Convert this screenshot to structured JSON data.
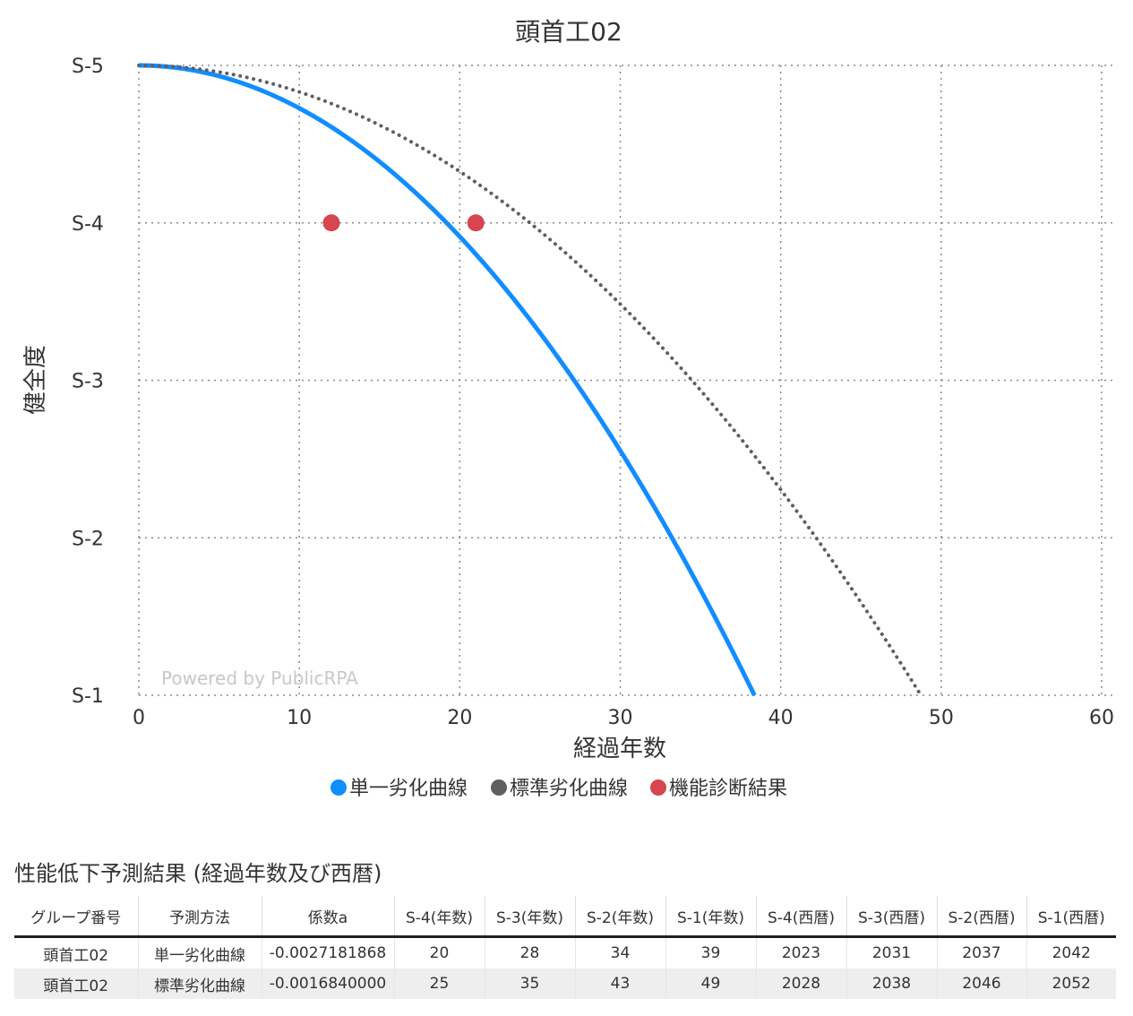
{
  "chart_data": {
    "type": "line",
    "title": "頭首工02",
    "xlabel": "経過年数",
    "ylabel": "健全度",
    "xlim": [
      0,
      60
    ],
    "ylim": [
      1,
      5
    ],
    "xticks": [
      "0",
      "10",
      "20",
      "30",
      "40",
      "50",
      "60"
    ],
    "yticks": [
      "S-5",
      "S-4",
      "S-3",
      "S-2",
      "S-1"
    ],
    "grid": true,
    "legend_position": "bottom",
    "series": [
      {
        "name": "単一劣化曲線",
        "style": "solid",
        "color": "#118DFF",
        "coefficient": -0.0027181868,
        "x": [
          0,
          5,
          10,
          15,
          20,
          25,
          30,
          35,
          38.4
        ],
        "y": [
          5.0,
          4.93,
          4.73,
          4.39,
          3.91,
          3.3,
          2.55,
          1.67,
          1.0
        ]
      },
      {
        "name": "標準劣化曲線",
        "style": "dotted",
        "color": "#5f5f5f",
        "coefficient": -0.001684,
        "x": [
          0,
          5,
          10,
          15,
          20,
          25,
          30,
          35,
          40,
          45,
          48.7
        ],
        "y": [
          5.0,
          4.96,
          4.83,
          4.62,
          4.33,
          3.95,
          3.48,
          2.94,
          2.31,
          1.59,
          1.0
        ]
      },
      {
        "name": "機能診断結果",
        "style": "markers",
        "color": "#D64550",
        "x": [
          12,
          21
        ],
        "y": [
          4,
          4
        ]
      }
    ]
  },
  "watermark": "Powered by PublicRPA",
  "table": {
    "title": "性能低下予測結果 (経過年数及び西暦)",
    "headers": [
      "グループ番号",
      "予測方法",
      "係数a",
      "S-4(年数)",
      "S-3(年数)",
      "S-2(年数)",
      "S-1(年数)",
      "S-4(西暦)",
      "S-3(西暦)",
      "S-2(西暦)",
      "S-1(西暦)"
    ],
    "rows": [
      [
        "頭首工02",
        "単一劣化曲線",
        "-0.0027181868",
        "20",
        "28",
        "34",
        "39",
        "2023",
        "2031",
        "2037",
        "2042"
      ],
      [
        "頭首工02",
        "標準劣化曲線",
        "-0.0016840000",
        "25",
        "35",
        "43",
        "49",
        "2028",
        "2038",
        "2046",
        "2052"
      ]
    ]
  }
}
